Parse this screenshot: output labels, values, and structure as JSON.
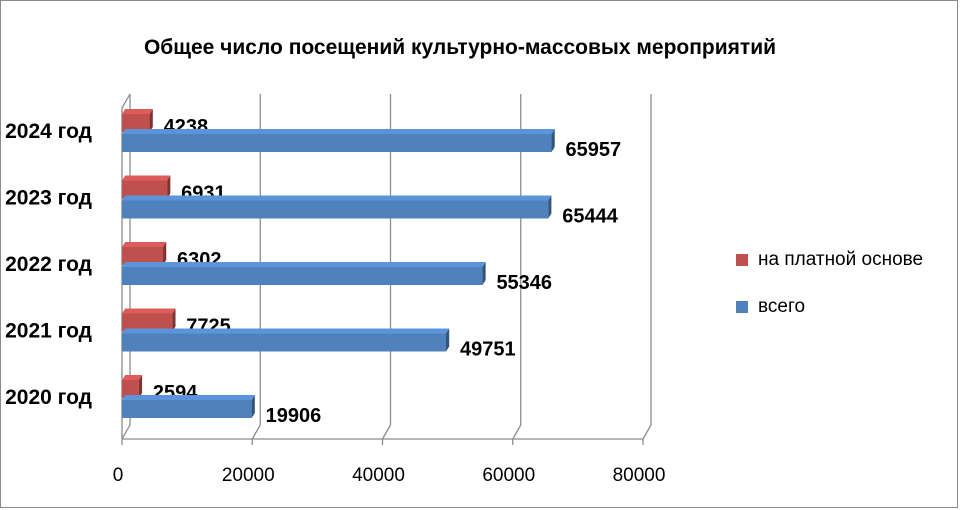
{
  "chart_data": {
    "type": "bar",
    "orientation": "horizontal",
    "title": "Общее число посещений культурно-массовых мероприятий",
    "categories": [
      "2020 год",
      "2021 год",
      "2022 год",
      "2023 год",
      "2024 год"
    ],
    "series": [
      {
        "name": "всего",
        "values": [
          19906,
          49751,
          55346,
          65444,
          65957
        ],
        "color": "#4F81BD"
      },
      {
        "name": "на платной основе",
        "values": [
          2594,
          7725,
          6302,
          6931,
          4238
        ],
        "color": "#C0504D"
      }
    ],
    "xlim": [
      0,
      80000
    ],
    "xticks": [
      "0",
      "20000",
      "40000",
      "60000",
      "80000"
    ],
    "grid": true,
    "legend_position": "right",
    "legend": [
      "на платной основе",
      "всего"
    ]
  }
}
